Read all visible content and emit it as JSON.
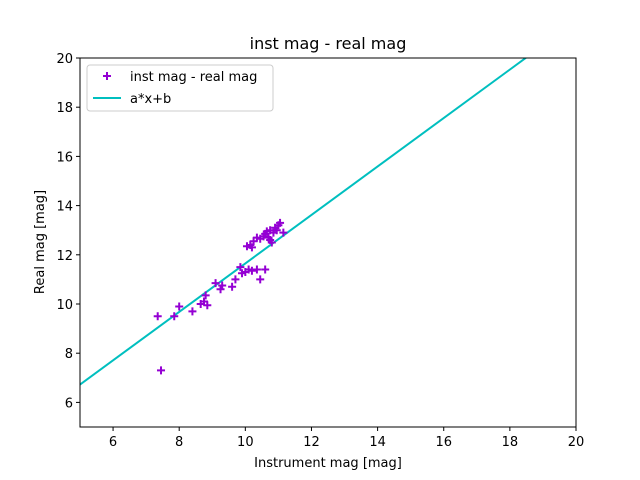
{
  "chart_data": {
    "type": "scatter",
    "title": "inst mag - real mag",
    "xlabel": "Instrument mag [mag]",
    "ylabel": "Real mag [mag]",
    "xlim": [
      5,
      20
    ],
    "ylim": [
      5,
      20
    ],
    "x_ticks": [
      6,
      8,
      10,
      12,
      14,
      16,
      18,
      20
    ],
    "y_ticks": [
      6,
      8,
      10,
      12,
      14,
      16,
      18,
      20
    ],
    "grid": false,
    "legend_position": "top-left",
    "series": [
      {
        "name": "inst mag - real mag",
        "kind": "scatter",
        "marker": "+",
        "color": "#9400d3",
        "points": [
          [
            7.35,
            9.5
          ],
          [
            7.45,
            7.3
          ],
          [
            7.85,
            9.5
          ],
          [
            8.0,
            9.9
          ],
          [
            8.4,
            9.7
          ],
          [
            8.65,
            10.0
          ],
          [
            8.75,
            10.1
          ],
          [
            8.8,
            10.35
          ],
          [
            8.85,
            9.95
          ],
          [
            9.1,
            10.85
          ],
          [
            9.25,
            10.6
          ],
          [
            9.3,
            10.75
          ],
          [
            9.6,
            10.7
          ],
          [
            9.7,
            11.0
          ],
          [
            9.85,
            11.5
          ],
          [
            9.9,
            11.25
          ],
          [
            10.0,
            11.3
          ],
          [
            10.1,
            11.4
          ],
          [
            10.2,
            11.35
          ],
          [
            10.35,
            11.4
          ],
          [
            10.45,
            11.0
          ],
          [
            10.6,
            11.4
          ],
          [
            10.05,
            12.35
          ],
          [
            10.15,
            12.4
          ],
          [
            10.2,
            12.3
          ],
          [
            10.25,
            12.55
          ],
          [
            10.35,
            12.7
          ],
          [
            10.45,
            12.65
          ],
          [
            10.55,
            12.75
          ],
          [
            10.6,
            12.85
          ],
          [
            10.65,
            12.95
          ],
          [
            10.7,
            12.7
          ],
          [
            10.75,
            12.6
          ],
          [
            10.75,
            13.0
          ],
          [
            10.8,
            12.5
          ],
          [
            10.85,
            12.9
          ],
          [
            10.9,
            13.1
          ],
          [
            10.95,
            13.0
          ],
          [
            11.0,
            13.2
          ],
          [
            11.05,
            13.3
          ],
          [
            11.15,
            12.9
          ]
        ]
      },
      {
        "name": "a*x+b",
        "kind": "line",
        "color": "#00bfbf",
        "slope": 0.985,
        "intercept": 1.8
      }
    ]
  }
}
